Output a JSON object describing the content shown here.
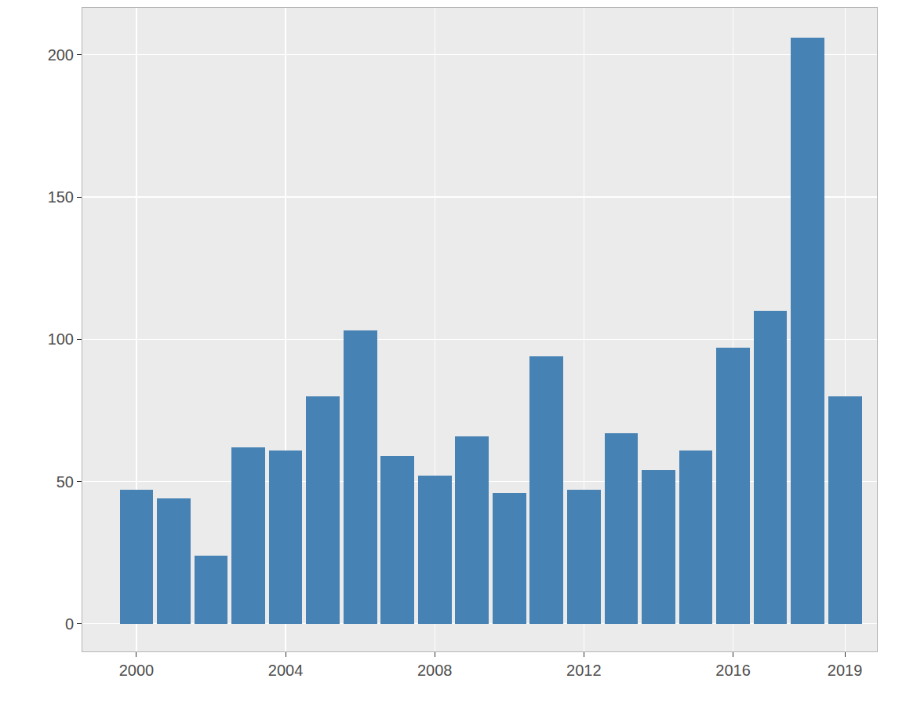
{
  "chart_data": {
    "type": "bar",
    "x": [
      2000,
      2001,
      2002,
      2003,
      2004,
      2005,
      2006,
      2007,
      2008,
      2009,
      2010,
      2011,
      2012,
      2013,
      2014,
      2015,
      2016,
      2017,
      2018,
      2019
    ],
    "values": [
      47,
      44,
      24,
      62,
      61,
      80,
      103,
      59,
      52,
      66,
      46,
      94,
      47,
      67,
      54,
      61,
      97,
      110,
      206,
      80
    ],
    "color": "#4682b4",
    "xlim": [
      1998.55,
      2019.86
    ],
    "xticks": [
      2000,
      2004,
      2008,
      2012,
      2016,
      2019
    ],
    "ylim": [
      -9.7,
      216.5
    ],
    "yticks": [
      0,
      50,
      100,
      150,
      200
    ],
    "grid": true
  }
}
